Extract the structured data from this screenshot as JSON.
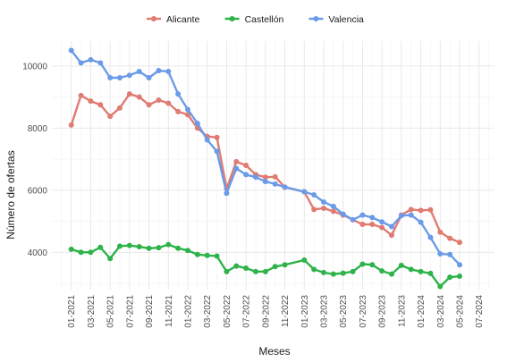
{
  "chart_data": {
    "type": "line",
    "title": "",
    "xlabel": "Meses",
    "ylabel": "Número de ofertas",
    "x_ticks": [
      "01-2021",
      "03-2021",
      "05-2021",
      "07-2021",
      "09-2021",
      "11-2021",
      "01-2022",
      "03-2022",
      "05-2022",
      "07-2022",
      "09-2022",
      "11-2022",
      "01-2023",
      "03-2023",
      "05-2023",
      "07-2023",
      "09-2023",
      "11-2023",
      "01-2024",
      "03-2024",
      "05-2024",
      "07-2024"
    ],
    "y_ticks": [
      "4000",
      "6000",
      "8000",
      "10000"
    ],
    "ylim": [
      2800,
      10800
    ],
    "legend_position": "top",
    "grid": true,
    "series": [
      {
        "name": "Alicante",
        "color": "#e07b72",
        "points": [
          [
            "01-2021",
            8100
          ],
          [
            "02-2021",
            9050
          ],
          [
            "03-2021",
            8870
          ],
          [
            "04-2021",
            8750
          ],
          [
            "05-2021",
            8380
          ],
          [
            "06-2021",
            8650
          ],
          [
            "07-2021",
            9100
          ],
          [
            "08-2021",
            9000
          ],
          [
            "09-2021",
            8750
          ],
          [
            "10-2021",
            8900
          ],
          [
            "11-2021",
            8800
          ],
          [
            "12-2021",
            8530
          ],
          [
            "01-2022",
            8430
          ],
          [
            "02-2022",
            8000
          ],
          [
            "03-2022",
            7730
          ],
          [
            "04-2022",
            7700
          ],
          [
            "05-2022",
            6050
          ],
          [
            "06-2022",
            6920
          ],
          [
            "07-2022",
            6800
          ],
          [
            "08-2022",
            6500
          ],
          [
            "09-2022",
            6420
          ],
          [
            "10-2022",
            6430
          ],
          [
            "11-2022",
            6100
          ],
          [
            "01-2023",
            5950
          ],
          [
            "02-2023",
            5380
          ],
          [
            "03-2023",
            5420
          ],
          [
            "04-2023",
            5320
          ],
          [
            "05-2023",
            5200
          ],
          [
            "06-2023",
            5050
          ],
          [
            "07-2023",
            4900
          ],
          [
            "08-2023",
            4900
          ],
          [
            "09-2023",
            4800
          ],
          [
            "10-2023",
            4550
          ],
          [
            "11-2023",
            5200
          ],
          [
            "12-2023",
            5380
          ],
          [
            "01-2024",
            5350
          ],
          [
            "02-2024",
            5370
          ],
          [
            "03-2024",
            4650
          ],
          [
            "04-2024",
            4450
          ],
          [
            "05-2024",
            4320
          ]
        ]
      },
      {
        "name": "Castellón",
        "color": "#2db34a",
        "points": [
          [
            "01-2021",
            4100
          ],
          [
            "02-2021",
            4000
          ],
          [
            "03-2021",
            4000
          ],
          [
            "04-2021",
            4160
          ],
          [
            "05-2021",
            3800
          ],
          [
            "06-2021",
            4200
          ],
          [
            "07-2021",
            4220
          ],
          [
            "08-2021",
            4180
          ],
          [
            "09-2021",
            4130
          ],
          [
            "10-2021",
            4150
          ],
          [
            "11-2021",
            4250
          ],
          [
            "12-2021",
            4130
          ],
          [
            "01-2022",
            4060
          ],
          [
            "02-2022",
            3930
          ],
          [
            "03-2022",
            3900
          ],
          [
            "04-2022",
            3880
          ],
          [
            "05-2022",
            3380
          ],
          [
            "06-2022",
            3560
          ],
          [
            "07-2022",
            3490
          ],
          [
            "08-2022",
            3380
          ],
          [
            "09-2022",
            3380
          ],
          [
            "10-2022",
            3540
          ],
          [
            "11-2022",
            3600
          ],
          [
            "01-2023",
            3750
          ],
          [
            "02-2023",
            3450
          ],
          [
            "03-2023",
            3350
          ],
          [
            "04-2023",
            3300
          ],
          [
            "05-2023",
            3330
          ],
          [
            "06-2023",
            3380
          ],
          [
            "07-2023",
            3620
          ],
          [
            "08-2023",
            3600
          ],
          [
            "09-2023",
            3400
          ],
          [
            "10-2023",
            3300
          ],
          [
            "11-2023",
            3580
          ],
          [
            "12-2023",
            3450
          ],
          [
            "01-2024",
            3380
          ],
          [
            "02-2024",
            3320
          ],
          [
            "03-2024",
            2900
          ],
          [
            "04-2024",
            3200
          ],
          [
            "05-2024",
            3230
          ]
        ]
      },
      {
        "name": "Valencia",
        "color": "#6b9be8",
        "points": [
          [
            "01-2021",
            10500
          ],
          [
            "02-2021",
            10100
          ],
          [
            "03-2021",
            10200
          ],
          [
            "04-2021",
            10100
          ],
          [
            "05-2021",
            9620
          ],
          [
            "06-2021",
            9620
          ],
          [
            "07-2021",
            9700
          ],
          [
            "08-2021",
            9820
          ],
          [
            "09-2021",
            9620
          ],
          [
            "10-2021",
            9850
          ],
          [
            "11-2021",
            9820
          ],
          [
            "12-2021",
            9100
          ],
          [
            "01-2022",
            8600
          ],
          [
            "02-2022",
            8150
          ],
          [
            "03-2022",
            7620
          ],
          [
            "04-2022",
            7250
          ],
          [
            "05-2022",
            5900
          ],
          [
            "06-2022",
            6700
          ],
          [
            "07-2022",
            6500
          ],
          [
            "08-2022",
            6420
          ],
          [
            "09-2022",
            6280
          ],
          [
            "10-2022",
            6200
          ],
          [
            "11-2022",
            6100
          ],
          [
            "01-2023",
            5950
          ],
          [
            "02-2023",
            5850
          ],
          [
            "03-2023",
            5620
          ],
          [
            "04-2023",
            5480
          ],
          [
            "05-2023",
            5230
          ],
          [
            "06-2023",
            5050
          ],
          [
            "07-2023",
            5200
          ],
          [
            "08-2023",
            5120
          ],
          [
            "09-2023",
            4980
          ],
          [
            "10-2023",
            4830
          ],
          [
            "11-2023",
            5180
          ],
          [
            "12-2023",
            5200
          ],
          [
            "01-2024",
            4970
          ],
          [
            "02-2024",
            4480
          ],
          [
            "03-2024",
            3950
          ],
          [
            "04-2024",
            3930
          ],
          [
            "05-2024",
            3600
          ]
        ]
      }
    ]
  }
}
